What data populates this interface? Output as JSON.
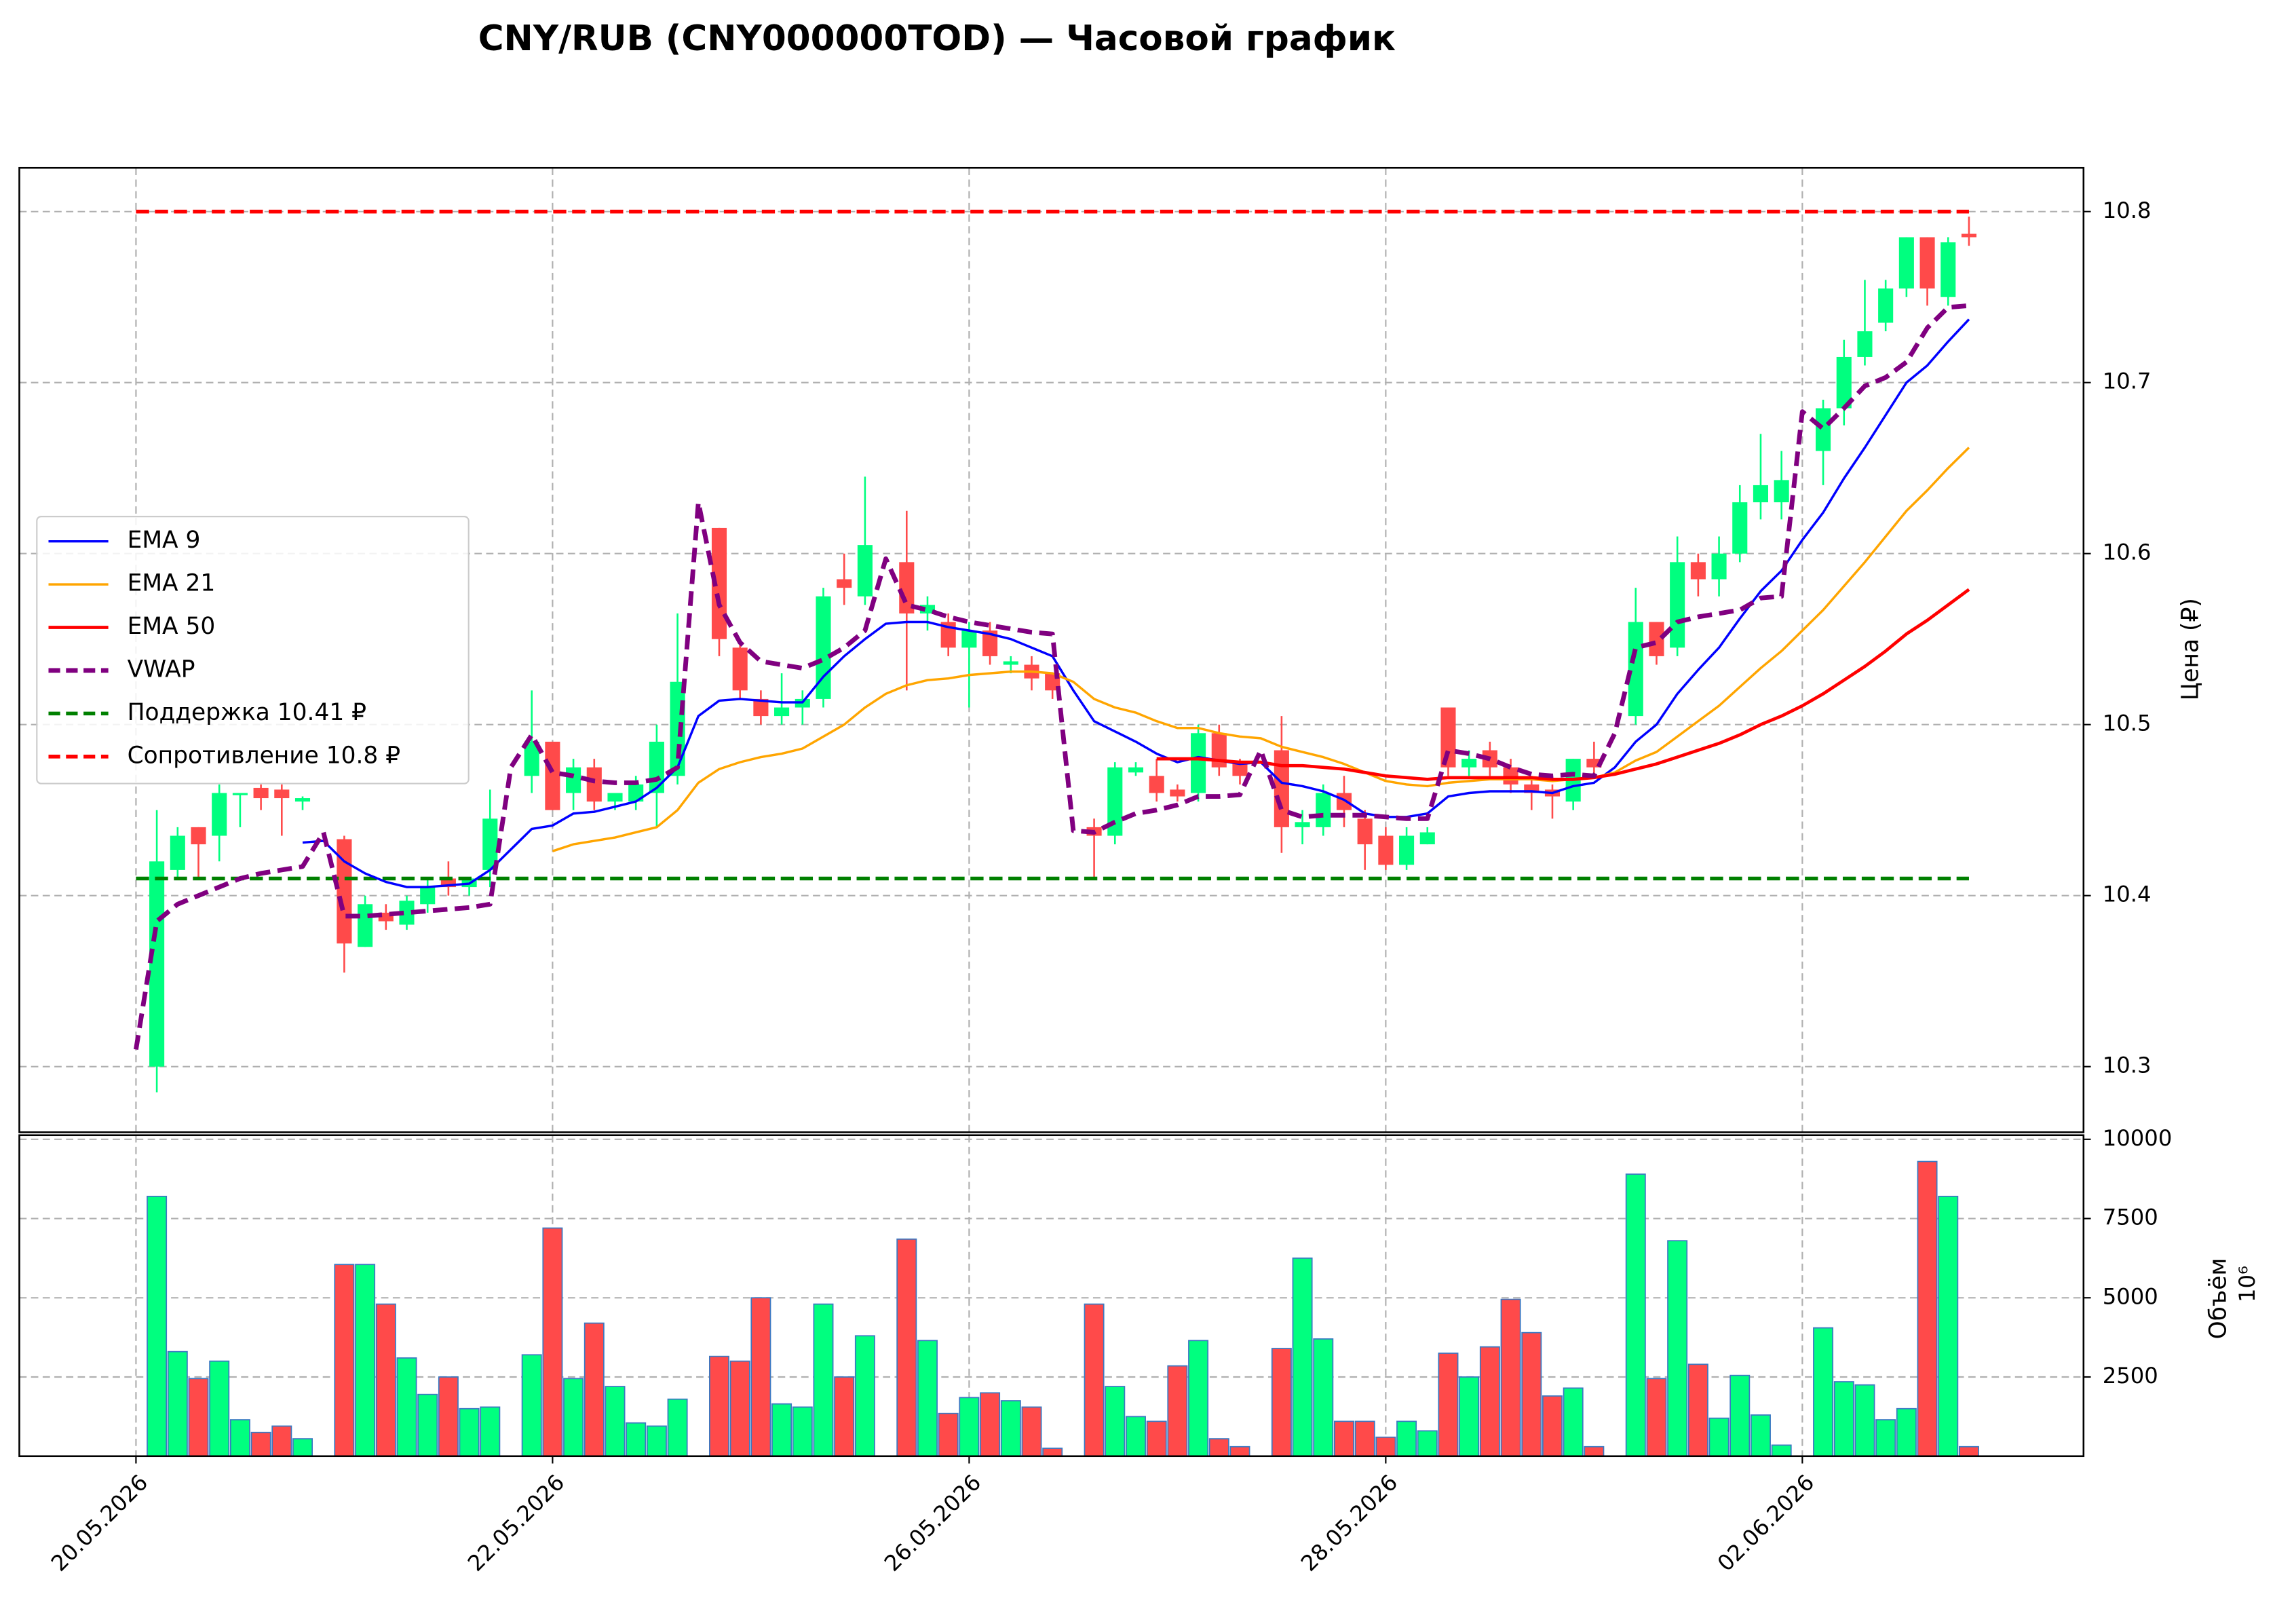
{
  "chart_data": {
    "type": "candlestick",
    "title": "CNY/RUB (CNY000000TOD) — Часовой график",
    "open": [
      null,
      10.3,
      10.415,
      10.44,
      10.435,
      10.46,
      10.463,
      10.462,
      10.455,
      null,
      10.433,
      10.37,
      10.39,
      10.383,
      10.395,
      10.41,
      10.405,
      10.415,
      null,
      10.47,
      10.49,
      10.46,
      10.475,
      10.455,
      10.455,
      10.46,
      10.47,
      null,
      10.615,
      10.545,
      10.515,
      10.505,
      10.51,
      10.515,
      10.585,
      10.575,
      null,
      10.595,
      10.565,
      10.56,
      10.545,
      10.555,
      10.535,
      10.535,
      10.53,
      null,
      10.44,
      10.435,
      10.472,
      10.47,
      10.462,
      10.46,
      10.495,
      10.477,
      null,
      10.485,
      10.44,
      10.44,
      10.46,
      10.445,
      10.435,
      10.418,
      10.43,
      10.51,
      10.475,
      10.485,
      10.475,
      10.465,
      10.462,
      10.455,
      10.48,
      null,
      10.505,
      10.56,
      10.545,
      10.595,
      10.585,
      10.6,
      10.63,
      10.63,
      null,
      10.66,
      10.685,
      10.715,
      10.735,
      10.755,
      10.785,
      10.75,
      10.787
    ],
    "high": [
      null,
      10.45,
      10.44,
      10.44,
      10.465,
      10.46,
      10.465,
      10.465,
      10.458,
      null,
      10.435,
      10.4,
      10.395,
      10.4,
      10.41,
      10.42,
      10.41,
      10.462,
      null,
      10.52,
      10.49,
      10.48,
      10.48,
      10.46,
      10.47,
      10.5,
      10.565,
      null,
      10.615,
      10.55,
      10.52,
      10.53,
      10.52,
      10.58,
      10.6,
      10.645,
      null,
      10.625,
      10.575,
      10.565,
      10.56,
      10.56,
      10.54,
      10.54,
      10.53,
      null,
      10.445,
      10.478,
      10.478,
      10.48,
      10.465,
      10.5,
      10.5,
      10.48,
      null,
      10.505,
      10.45,
      10.465,
      10.47,
      10.45,
      10.44,
      10.44,
      10.44,
      10.51,
      10.485,
      10.49,
      10.48,
      10.47,
      10.465,
      10.48,
      10.49,
      null,
      10.58,
      10.56,
      10.61,
      10.6,
      10.61,
      10.64,
      10.67,
      10.66,
      null,
      10.69,
      10.725,
      10.76,
      10.76,
      10.785,
      10.785,
      10.785,
      10.797
    ],
    "low": [
      null,
      10.285,
      10.41,
      10.41,
      10.42,
      10.44,
      10.45,
      10.435,
      10.45,
      null,
      10.355,
      10.37,
      10.38,
      10.38,
      10.39,
      10.4,
      10.4,
      10.405,
      null,
      10.46,
      10.45,
      10.45,
      10.45,
      10.45,
      10.45,
      10.44,
      10.465,
      null,
      10.54,
      10.515,
      10.5,
      10.5,
      10.5,
      10.51,
      10.57,
      10.57,
      null,
      10.52,
      10.555,
      10.54,
      10.51,
      10.535,
      10.53,
      10.52,
      10.515,
      null,
      10.41,
      10.43,
      10.47,
      10.455,
      10.455,
      10.455,
      10.47,
      10.465,
      null,
      10.425,
      10.43,
      10.435,
      10.44,
      10.415,
      10.415,
      10.415,
      10.43,
      10.47,
      10.47,
      10.47,
      10.46,
      10.45,
      10.445,
      10.45,
      10.47,
      null,
      10.5,
      10.535,
      10.54,
      10.575,
      10.575,
      10.595,
      10.62,
      10.62,
      null,
      10.64,
      10.675,
      10.71,
      10.73,
      10.75,
      10.745,
      10.745,
      10.78
    ],
    "close": [
      null,
      10.42,
      10.435,
      10.43,
      10.46,
      10.46,
      10.457,
      10.457,
      10.457,
      null,
      10.372,
      10.395,
      10.385,
      10.397,
      10.405,
      10.405,
      10.41,
      10.445,
      null,
      10.49,
      10.45,
      10.475,
      10.455,
      10.46,
      10.465,
      10.49,
      10.525,
      null,
      10.55,
      10.52,
      10.505,
      10.51,
      10.515,
      10.575,
      10.58,
      10.605,
      null,
      10.565,
      10.57,
      10.545,
      10.555,
      10.54,
      10.537,
      10.527,
      10.52,
      null,
      10.435,
      10.475,
      10.475,
      10.46,
      10.458,
      10.495,
      10.475,
      10.47,
      null,
      10.44,
      10.443,
      10.46,
      10.45,
      10.43,
      10.418,
      10.435,
      10.437,
      10.475,
      10.48,
      10.475,
      10.465,
      10.46,
      10.458,
      10.48,
      10.475,
      null,
      10.56,
      10.54,
      10.595,
      10.585,
      10.6,
      10.63,
      10.64,
      10.643,
      null,
      10.685,
      10.715,
      10.73,
      10.755,
      10.785,
      10.755,
      10.782,
      10.785
    ],
    "volume": [
      null,
      8200,
      3300,
      2450,
      3000,
      1150,
      750,
      950,
      550,
      null,
      6050,
      6050,
      4800,
      3100,
      1950,
      2500,
      1500,
      1550,
      null,
      3200,
      7200,
      2450,
      4200,
      2200,
      1050,
      950,
      1800,
      null,
      3150,
      3000,
      5000,
      1650,
      1550,
      4800,
      2500,
      3800,
      null,
      6850,
      3650,
      1350,
      1850,
      2000,
      1750,
      1550,
      250,
      null,
      4800,
      2200,
      1250,
      1100,
      2850,
      3650,
      550,
      300,
      null,
      3400,
      6250,
      3700,
      1100,
      1100,
      600,
      1100,
      800,
      3250,
      2500,
      3450,
      4950,
      3900,
      1900,
      2150,
      300,
      null,
      8900,
      2450,
      6800,
      2900,
      1200,
      2550,
      1300,
      350,
      null,
      4050,
      2350,
      2250,
      1150,
      1500,
      9300,
      8200,
      300
    ],
    "up_color": "#00ff7f",
    "down_color": "#ff4a4a",
    "volume_edge_color": "#3a78c2",
    "overlays": [
      {
        "name": "EMA 9",
        "color": "#0000ff",
        "width": 1.6,
        "dashed": false,
        "values": [
          null,
          null,
          null,
          null,
          null,
          null,
          null,
          null,
          10.431,
          10.432,
          10.42,
          10.413,
          10.408,
          10.405,
          10.405,
          10.406,
          10.407,
          10.415,
          10.427,
          10.439,
          10.441,
          10.448,
          10.449,
          10.452,
          10.455,
          10.463,
          10.475,
          10.505,
          10.514,
          10.515,
          10.514,
          10.513,
          10.513,
          10.528,
          10.54,
          10.55,
          10.559,
          10.56,
          10.56,
          10.557,
          10.555,
          10.553,
          10.55,
          10.545,
          10.54,
          10.52,
          10.502,
          10.496,
          10.49,
          10.483,
          10.478,
          10.481,
          10.479,
          10.477,
          10.478,
          10.466,
          10.464,
          10.461,
          10.456,
          10.448,
          10.446,
          10.446,
          10.448,
          10.458,
          10.46,
          10.461,
          10.461,
          10.461,
          10.46,
          10.464,
          10.466,
          10.475,
          10.49,
          10.5,
          10.518,
          10.532,
          10.545,
          10.562,
          10.578,
          10.59,
          10.608,
          10.624,
          10.644,
          10.662,
          10.681,
          10.7,
          10.71,
          10.724,
          10.737
        ]
      },
      {
        "name": "EMA 21",
        "color": "#ffa500",
        "width": 1.6,
        "dashed": false,
        "values": [
          null,
          null,
          null,
          null,
          null,
          null,
          null,
          null,
          null,
          null,
          null,
          null,
          null,
          null,
          null,
          null,
          null,
          null,
          null,
          null,
          10.426,
          10.43,
          10.432,
          10.434,
          10.437,
          10.44,
          10.45,
          10.466,
          10.474,
          10.478,
          10.481,
          10.483,
          10.486,
          10.493,
          10.5,
          10.51,
          10.518,
          10.523,
          10.526,
          10.527,
          10.529,
          10.53,
          10.531,
          10.531,
          10.53,
          10.525,
          10.515,
          10.51,
          10.507,
          10.502,
          10.498,
          10.498,
          10.495,
          10.493,
          10.492,
          10.487,
          10.484,
          10.481,
          10.477,
          10.472,
          10.467,
          10.465,
          10.464,
          10.466,
          10.467,
          10.468,
          10.468,
          10.468,
          10.467,
          10.468,
          10.469,
          10.472,
          10.479,
          10.484,
          10.493,
          10.502,
          10.511,
          10.522,
          10.533,
          10.543,
          10.555,
          10.567,
          10.581,
          10.595,
          10.61,
          10.625,
          10.637,
          10.65,
          10.662
        ]
      },
      {
        "name": "EMA 50",
        "color": "#ff0000",
        "width": 2.2,
        "dashed": false,
        "values": [
          null,
          null,
          null,
          null,
          null,
          null,
          null,
          null,
          null,
          null,
          null,
          null,
          null,
          null,
          null,
          null,
          null,
          null,
          null,
          null,
          null,
          null,
          null,
          null,
          null,
          null,
          null,
          null,
          null,
          null,
          null,
          null,
          null,
          null,
          null,
          null,
          null,
          null,
          null,
          null,
          null,
          null,
          null,
          null,
          null,
          null,
          null,
          null,
          null,
          10.48,
          10.48,
          10.48,
          10.479,
          10.478,
          10.478,
          10.476,
          10.476,
          10.475,
          10.474,
          10.472,
          10.47,
          10.469,
          10.468,
          10.469,
          10.469,
          10.469,
          10.469,
          10.469,
          10.468,
          10.468,
          10.469,
          10.471,
          10.474,
          10.477,
          10.481,
          10.485,
          10.489,
          10.494,
          10.5,
          10.505,
          10.511,
          10.518,
          10.526,
          10.534,
          10.543,
          10.553,
          10.561,
          10.57,
          10.579
        ]
      },
      {
        "name": "VWAP",
        "color": "#800080",
        "width": 3.2,
        "dashed": true,
        "values": [
          10.31,
          10.385,
          10.395,
          10.4,
          10.405,
          10.41,
          10.413,
          10.415,
          10.417,
          10.437,
          10.388,
          10.388,
          10.389,
          10.39,
          10.391,
          10.392,
          10.393,
          10.395,
          10.475,
          10.494,
          10.472,
          10.47,
          10.467,
          10.466,
          10.466,
          10.468,
          10.475,
          10.63,
          10.57,
          10.548,
          10.537,
          10.535,
          10.533,
          10.538,
          10.545,
          10.555,
          10.597,
          10.57,
          10.567,
          10.563,
          10.56,
          10.558,
          10.556,
          10.554,
          10.553,
          10.438,
          10.437,
          10.443,
          10.448,
          10.45,
          10.453,
          10.458,
          10.458,
          10.459,
          10.485,
          10.45,
          10.446,
          10.447,
          10.447,
          10.447,
          10.446,
          10.445,
          10.445,
          10.485,
          10.483,
          10.48,
          10.475,
          10.471,
          10.47,
          10.471,
          10.47,
          10.495,
          10.545,
          10.548,
          10.56,
          10.563,
          10.565,
          10.567,
          10.574,
          10.575,
          10.683,
          10.673,
          10.685,
          10.698,
          10.703,
          10.712,
          10.732,
          10.744,
          10.745
        ]
      }
    ],
    "levels": [
      {
        "name": "Поддержка 10.41 ₽",
        "value": 10.41,
        "color": "#008000"
      },
      {
        "name": "Сопротивление 10.8 ₽",
        "value": 10.8,
        "color": "#ff0000"
      }
    ],
    "xlim": [
      -5.6,
      93.5
    ],
    "xticks": [
      {
        "value": 0,
        "label": "20.05.2026"
      },
      {
        "value": 20,
        "label": "22.05.2026"
      },
      {
        "value": 40,
        "label": "26.05.2026"
      },
      {
        "value": 60,
        "label": "28.05.2026"
      },
      {
        "value": 80,
        "label": "02.06.2026"
      }
    ],
    "ylim": [
      10.2616,
      10.8256
    ],
    "yticks": [
      10.3,
      10.4,
      10.5,
      10.6,
      10.7,
      10.8
    ],
    "ylabel": "Цена (₽)",
    "volume_ylim": [
      0,
      10130
    ],
    "volume_yticks": [
      2500,
      5000,
      7500,
      10000
    ],
    "volume_ylabel": "Объём",
    "volume_offset_label": "10⁶",
    "grid": true,
    "legend": "center left"
  }
}
